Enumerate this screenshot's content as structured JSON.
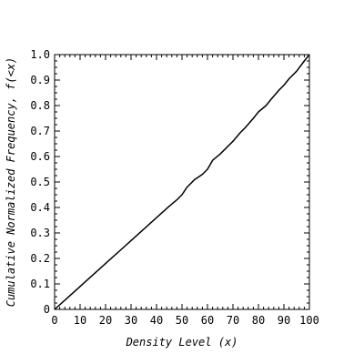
{
  "chart_data": {
    "type": "line",
    "title": "",
    "xlabel": "Density Level (x)",
    "ylabel": "Cumulative Normalized Frequency, f(<x)",
    "xlim": [
      0,
      100
    ],
    "ylim": [
      0,
      1.0
    ],
    "x_ticks": [
      "0",
      "10",
      "20",
      "30",
      "40",
      "50",
      "60",
      "70",
      "80",
      "90",
      "100"
    ],
    "y_ticks": [
      "0",
      "0.1",
      "0.2",
      "0.3",
      "0.4",
      "0.5",
      "0.6",
      "0.7",
      "0.8",
      "0.9",
      "1.0"
    ],
    "grid": false,
    "series": [
      {
        "x": [
          0,
          5,
          10,
          15,
          20,
          25,
          30,
          35,
          40,
          45,
          48,
          50,
          52,
          55,
          58,
          60,
          62,
          65,
          70,
          73,
          75,
          78,
          80,
          83,
          85,
          88,
          90,
          92,
          95,
          98,
          100
        ],
        "y": [
          0.0,
          0.045,
          0.09,
          0.135,
          0.18,
          0.225,
          0.27,
          0.315,
          0.36,
          0.405,
          0.43,
          0.45,
          0.48,
          0.51,
          0.53,
          0.55,
          0.585,
          0.61,
          0.66,
          0.695,
          0.715,
          0.75,
          0.775,
          0.8,
          0.825,
          0.86,
          0.88,
          0.905,
          0.935,
          0.975,
          1.0
        ]
      }
    ],
    "line_color": "#000000"
  }
}
